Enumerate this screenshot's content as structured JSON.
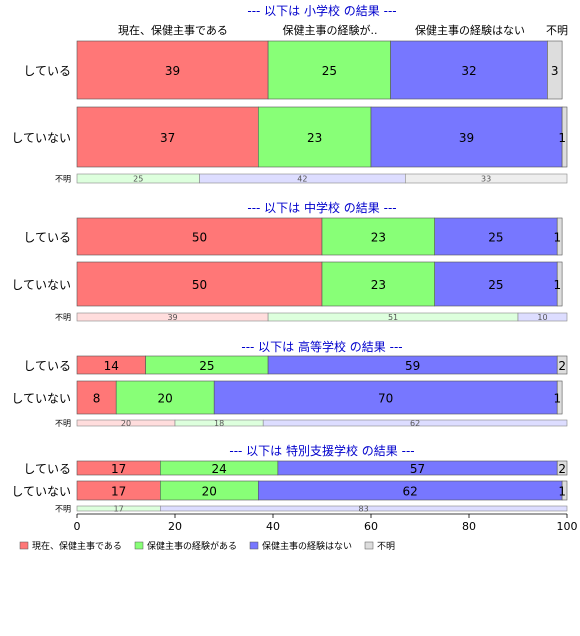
{
  "colors": {
    "current": "#ff7777",
    "experienced": "#88ff77",
    "never": "#7777ff",
    "unknown": "#dddddd",
    "section_title": "#0000cc",
    "bar_stroke": "#555555"
  },
  "chart_data": {
    "type": "bar",
    "orientation": "horizontal",
    "stacked": true,
    "xlim": [
      0,
      100
    ],
    "x_ticks": [
      "0",
      "20",
      "40",
      "60",
      "80",
      "100"
    ],
    "column_headers": [
      "現在、保健主事である",
      "保健主事の経験が..",
      "保健主事の経験はない",
      "不明"
    ],
    "legend": {
      "placement": "bottom-left",
      "entries": [
        "現在、保健主事である",
        "保健主事の経験がある",
        "保健主事の経験はない",
        "不明"
      ]
    },
    "panels": [
      {
        "title": "--- 以下は 小学校 の結果 ---",
        "rows": [
          {
            "label": "している",
            "values": [
              39,
              25,
              32,
              3
            ],
            "labels": [
              "39",
              "25",
              "32",
              "3"
            ]
          },
          {
            "label": "していない",
            "values": [
              37,
              23,
              39,
              1
            ],
            "labels": [
              "37",
              "23",
              "39",
              "1"
            ]
          },
          {
            "label": "不明",
            "minor": true,
            "values": [
              0,
              25,
              42,
              33
            ],
            "labels": [
              "",
              "25",
              "42",
              "33"
            ]
          }
        ]
      },
      {
        "title": "--- 以下は 中学校 の結果 ---",
        "rows": [
          {
            "label": "している",
            "values": [
              50,
              23,
              25,
              1
            ],
            "labels": [
              "50",
              "23",
              "25",
              "1"
            ]
          },
          {
            "label": "していない",
            "values": [
              50,
              23,
              25,
              1
            ],
            "labels": [
              "50",
              "23",
              "25",
              "1"
            ]
          },
          {
            "label": "不明",
            "minor": true,
            "values": [
              39,
              51,
              10,
              0
            ],
            "labels": [
              "39",
              "51",
              "10",
              ""
            ]
          }
        ]
      },
      {
        "title": "--- 以下は 高等学校 の結果 ---",
        "rows": [
          {
            "label": "している",
            "values": [
              14,
              25,
              59,
              2
            ],
            "labels": [
              "14",
              "25",
              "59",
              "2"
            ]
          },
          {
            "label": "していない",
            "values": [
              8,
              20,
              70,
              1
            ],
            "labels": [
              "8",
              "20",
              "70",
              "1"
            ]
          },
          {
            "label": "不明",
            "minor": true,
            "values": [
              20,
              18,
              62,
              0
            ],
            "labels": [
              "20",
              "18",
              "62",
              ""
            ]
          }
        ]
      },
      {
        "title": "--- 以下は 特別支援学校 の結果 ---",
        "rows": [
          {
            "label": "している",
            "values": [
              17,
              24,
              57,
              2
            ],
            "labels": [
              "17",
              "24",
              "57",
              "2"
            ]
          },
          {
            "label": "していない",
            "values": [
              17,
              20,
              62,
              1
            ],
            "labels": [
              "17",
              "20",
              "62",
              "1"
            ]
          },
          {
            "label": "不明",
            "minor": true,
            "values": [
              0,
              17,
              83,
              0
            ],
            "labels": [
              "",
              "17",
              "83",
              ""
            ]
          }
        ]
      }
    ]
  }
}
